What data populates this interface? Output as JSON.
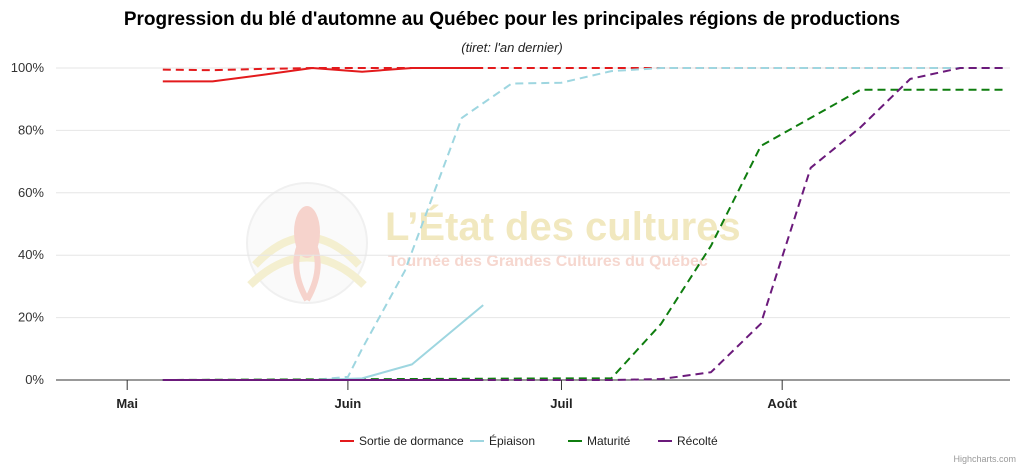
{
  "colors": {
    "sortie": "#e31a1c",
    "epiaison": "#9ed6e0",
    "maturite": "#0f7d0f",
    "recolte": "#6b1a7b"
  },
  "watermark": {
    "title": "L’État des cultures",
    "subtitle": "Tournée des Grandes Cultures du Québec",
    "icon": "corn-logo-icon"
  },
  "credit": "Highcharts.com",
  "chart_data": {
    "type": "line",
    "title": "Progression du blé d'automne au Québec pour les principales régions de productions",
    "subtitle": "(tiret: l'an dernier)",
    "xaxis": {
      "type": "date",
      "range": [
        "2024-04-21",
        "2024-09-02"
      ],
      "ticks": [
        {
          "date": "2024-05-01",
          "label": "Mai"
        },
        {
          "date": "2024-06-01",
          "label": "Juin"
        },
        {
          "date": "2024-07-01",
          "label": "Juil"
        },
        {
          "date": "2024-08-01",
          "label": "Août"
        }
      ]
    },
    "yaxis": {
      "min": 0,
      "max": 100,
      "ticks": [
        0,
        20,
        40,
        60,
        80,
        100
      ],
      "tick_labels": [
        "0%",
        "20%",
        "40%",
        "60%",
        "80%",
        "100%"
      ],
      "grid": true
    },
    "legend": {
      "position": "bottom-center"
    },
    "series": [
      {
        "key": "sortie_prev",
        "color": "sortie",
        "dash": true,
        "points": [
          [
            "2024-05-06",
            99.5
          ],
          [
            "2024-05-13",
            99.3
          ],
          [
            "2024-05-20",
            99.7
          ],
          [
            "2024-05-27",
            100
          ],
          [
            "2024-06-03",
            100
          ],
          [
            "2024-06-10",
            100
          ],
          [
            "2024-09-01",
            100
          ]
        ]
      },
      {
        "key": "epiaison_prev",
        "color": "epiaison",
        "dash": true,
        "points": [
          [
            "2024-05-06",
            0
          ],
          [
            "2024-05-27",
            0
          ],
          [
            "2024-06-01",
            1
          ],
          [
            "2024-06-03",
            10
          ],
          [
            "2024-06-09",
            35
          ],
          [
            "2024-06-17",
            84
          ],
          [
            "2024-06-24",
            95
          ],
          [
            "2024-07-01",
            95.3
          ],
          [
            "2024-07-08",
            99
          ],
          [
            "2024-07-15",
            100
          ],
          [
            "2024-09-01",
            100
          ]
        ]
      },
      {
        "key": "maturite_prev",
        "color": "maturite",
        "dash": true,
        "points": [
          [
            "2024-05-06",
            0
          ],
          [
            "2024-07-01",
            0.5
          ],
          [
            "2024-07-08",
            0.5
          ],
          [
            "2024-07-15",
            18
          ],
          [
            "2024-07-22",
            43
          ],
          [
            "2024-07-29",
            75
          ],
          [
            "2024-08-05",
            84
          ],
          [
            "2024-08-12",
            93
          ],
          [
            "2024-09-01",
            93
          ]
        ]
      },
      {
        "key": "recolte_prev",
        "color": "recolte",
        "dash": true,
        "points": [
          [
            "2024-05-06",
            0
          ],
          [
            "2024-07-08",
            0
          ],
          [
            "2024-07-15",
            0.3
          ],
          [
            "2024-07-22",
            2.5
          ],
          [
            "2024-07-29",
            18
          ],
          [
            "2024-08-05",
            68
          ],
          [
            "2024-08-12",
            81
          ],
          [
            "2024-08-19",
            96.5
          ],
          [
            "2024-08-26",
            100
          ],
          [
            "2024-09-01",
            100
          ]
        ]
      },
      {
        "key": "epiaison",
        "name": "Épiaison",
        "color": "epiaison",
        "dash": false,
        "points": [
          [
            "2024-05-06",
            0
          ],
          [
            "2024-05-27",
            0
          ],
          [
            "2024-06-03",
            0.5
          ],
          [
            "2024-06-10",
            5
          ],
          [
            "2024-06-20",
            24
          ]
        ]
      },
      {
        "key": "maturite",
        "name": "Maturité",
        "color": "maturite",
        "dash": false,
        "points": [
          [
            "2024-05-06",
            0
          ],
          [
            "2024-06-20",
            0
          ]
        ]
      },
      {
        "key": "recolte",
        "name": "Récolté",
        "color": "recolte",
        "dash": false,
        "points": [
          [
            "2024-05-06",
            0
          ],
          [
            "2024-06-20",
            0
          ]
        ]
      },
      {
        "key": "sortie",
        "name": "Sortie de dormance",
        "color": "sortie",
        "dash": false,
        "points": [
          [
            "2024-05-06",
            95.7
          ],
          [
            "2024-05-13",
            95.7
          ],
          [
            "2024-05-20",
            97.8
          ],
          [
            "2024-05-27",
            100
          ],
          [
            "2024-06-03",
            98.8
          ],
          [
            "2024-06-10",
            100
          ],
          [
            "2024-06-20",
            100
          ]
        ]
      }
    ],
    "legend_order": [
      "sortie",
      "epiaison",
      "maturite",
      "recolte"
    ]
  }
}
